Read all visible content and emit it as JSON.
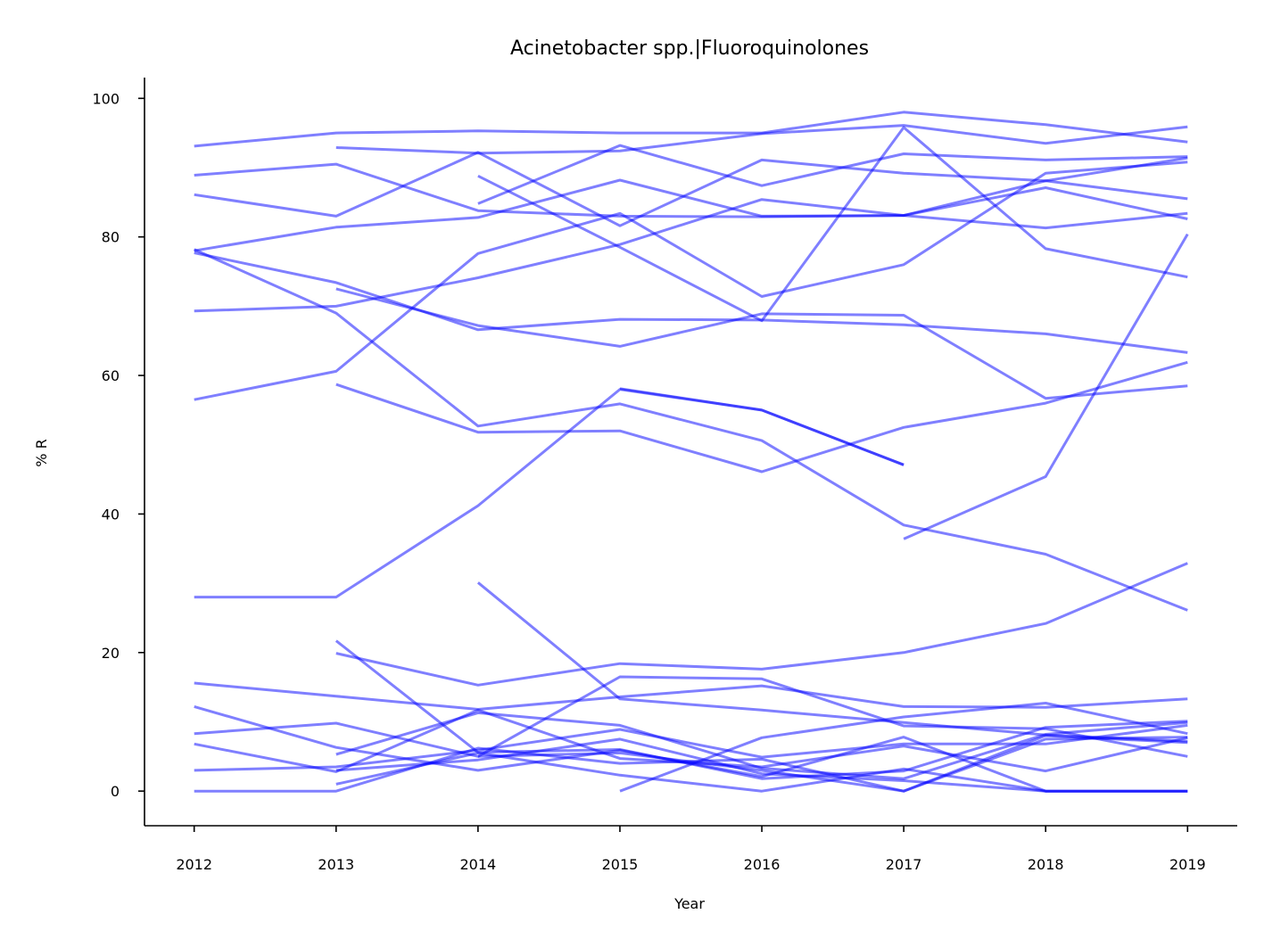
{
  "chart_data": {
    "type": "line",
    "title": "Acinetobacter spp.|Fluoroquinolones",
    "xlabel": "Year",
    "ylabel": "% R",
    "x": [
      2012,
      2013,
      2014,
      2015,
      2016,
      2017,
      2018,
      2019
    ],
    "xlim": [
      2011.65,
      2019.35
    ],
    "ylim": [
      -5,
      103
    ],
    "yticks": [
      0,
      20,
      40,
      60,
      80,
      100
    ],
    "grid": false,
    "legend": "none",
    "line_color": "#0000ff",
    "line_opacity": 0.5,
    "series": [
      {
        "values": [
          93.1,
          95.0,
          95.3,
          95.0,
          95.0,
          98.0,
          96.2,
          93.7
        ]
      },
      {
        "values": [
          null,
          92.9,
          92.1,
          92.4,
          94.9,
          96.1,
          93.5,
          95.9
        ]
      },
      {
        "values": [
          88.9,
          90.5,
          83.8,
          83.0,
          82.9,
          83.1,
          88.1,
          91.4
        ]
      },
      {
        "values": [
          86.1,
          83.0,
          92.2,
          81.6,
          91.1,
          89.2,
          88.1,
          85.5
        ]
      },
      {
        "values": [
          null,
          null,
          84.8,
          93.2,
          87.4,
          92.0,
          91.1,
          91.6
        ]
      },
      {
        "values": [
          null,
          null,
          88.8,
          78.5,
          67.9,
          95.8,
          78.3,
          74.2
        ]
      },
      {
        "values": [
          78.0,
          81.4,
          82.8,
          88.2,
          83.0,
          83.1,
          87.1,
          82.6
        ]
      },
      {
        "values": [
          77.7,
          73.4,
          66.6,
          68.1,
          68.0,
          67.3,
          66.0,
          63.3
        ]
      },
      {
        "values": [
          69.3,
          70.0,
          74.1,
          78.9,
          85.4,
          83.1,
          81.3,
          83.4
        ]
      },
      {
        "values": [
          null,
          72.5,
          67.2,
          64.2,
          68.9,
          68.7,
          56.7,
          58.5
        ]
      },
      {
        "values": [
          56.5,
          60.6,
          77.6,
          83.4,
          71.4,
          76.0,
          89.2,
          90.8
        ]
      },
      {
        "values": [
          78.2,
          69.0,
          52.7,
          55.9,
          50.6,
          38.4,
          34.2,
          26.1
        ]
      },
      {
        "values": [
          null,
          58.7,
          51.8,
          52.0,
          46.1,
          52.5,
          56.0,
          61.9
        ]
      },
      {
        "values": [
          null,
          null,
          null,
          58.1,
          55.0,
          47.1,
          null,
          null
        ]
      },
      {
        "values": [
          null,
          null,
          null,
          null,
          null,
          36.4,
          45.4,
          80.4
        ]
      },
      {
        "values": [
          28.0,
          28.0,
          41.2,
          58.0,
          55.0,
          47.1,
          null,
          null
        ]
      },
      {
        "values": [
          null,
          19.9,
          15.3,
          18.4,
          17.6,
          20.0,
          24.2,
          32.9
        ]
      },
      {
        "values": [
          15.6,
          13.7,
          11.8,
          13.6,
          15.2,
          12.2,
          12.1,
          13.3
        ]
      },
      {
        "values": [
          null,
          null,
          30.1,
          13.3,
          11.7,
          9.9,
          8.1,
          7.2
        ]
      },
      {
        "values": [
          12.2,
          6.3,
          3.0,
          5.9,
          2.1,
          7.8,
          0.0,
          0.0
        ]
      },
      {
        "values": [
          8.3,
          9.8,
          5.0,
          16.5,
          16.2,
          9.4,
          9.0,
          5.0
        ]
      },
      {
        "values": [
          null,
          21.7,
          5.6,
          6.0,
          1.8,
          2.9,
          9.2,
          10.1
        ]
      },
      {
        "values": [
          6.8,
          2.8,
          11.7,
          4.7,
          3.5,
          6.5,
          2.9,
          7.7
        ]
      },
      {
        "values": [
          3.0,
          3.5,
          5.9,
          8.9,
          4.9,
          6.8,
          6.8,
          9.5
        ]
      },
      {
        "values": [
          0.0,
          0.0,
          6.2,
          4.0,
          4.6,
          0.0,
          7.5,
          7.8
        ]
      },
      {
        "values": [
          null,
          1.0,
          5.5,
          2.3,
          0.0,
          3.2,
          0.0,
          0.0
        ]
      },
      {
        "values": [
          null,
          5.3,
          11.3,
          9.5,
          3.3,
          1.8,
          8.2,
          9.9
        ]
      },
      {
        "values": [
          null,
          null,
          null,
          0.0,
          7.7,
          10.7,
          12.7,
          8.3
        ]
      },
      {
        "values": [
          null,
          null,
          5.0,
          5.5,
          3.0,
          0.0,
          8.0,
          7.0
        ]
      },
      {
        "values": [
          null,
          3.0,
          4.5,
          7.5,
          2.5,
          1.5,
          0.0,
          0.0
        ]
      }
    ]
  }
}
